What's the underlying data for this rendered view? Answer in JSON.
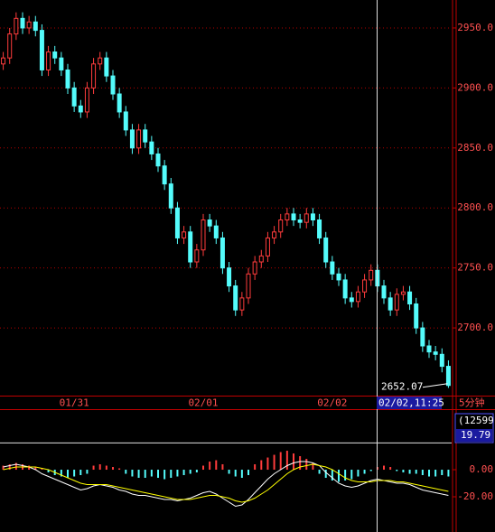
{
  "chart_data": [
    {
      "type": "candlestick",
      "categories": [
        null,
        null,
        null,
        null,
        null,
        null,
        null,
        null,
        null,
        null,
        null,
        "01/31",
        null,
        null,
        null,
        null,
        null,
        null,
        null,
        null,
        null,
        null,
        null,
        null,
        null,
        null,
        null,
        null,
        null,
        null,
        null,
        "02/01",
        null,
        null,
        null,
        null,
        null,
        null,
        null,
        null,
        null,
        null,
        null,
        null,
        null,
        null,
        null,
        null,
        null,
        null,
        null,
        "02/02",
        null,
        null,
        null,
        null,
        null,
        null,
        null,
        null,
        null,
        null,
        null,
        null,
        null,
        null,
        null,
        null,
        null,
        null
      ],
      "open": [
        2920,
        2925,
        2945,
        2958,
        2950,
        2955,
        2948,
        2915,
        2930,
        2925,
        2915,
        2900,
        2885,
        2880,
        2900,
        2920,
        2925,
        2910,
        2895,
        2880,
        2865,
        2850,
        2865,
        2855,
        2845,
        2835,
        2820,
        2800,
        2775,
        2780,
        2755,
        2765,
        2790,
        2785,
        2775,
        2750,
        2735,
        2715,
        2725,
        2745,
        2755,
        2760,
        2775,
        2780,
        2790,
        2795,
        2790,
        2788,
        2795,
        2790,
        2775,
        2755,
        2745,
        2740,
        2725,
        2722,
        2730,
        2740,
        2748,
        2735,
        2725,
        2715,
        2728,
        2730,
        2720,
        2700,
        2685,
        2680,
        2678,
        2668
      ],
      "high": [
        2930,
        2950,
        2963,
        2963,
        2960,
        2960,
        2953,
        2935,
        2935,
        2930,
        2920,
        2905,
        2890,
        2905,
        2925,
        2930,
        2930,
        2915,
        2900,
        2885,
        2870,
        2870,
        2870,
        2860,
        2850,
        2840,
        2825,
        2805,
        2785,
        2785,
        2770,
        2795,
        2795,
        2790,
        2780,
        2755,
        2740,
        2730,
        2750,
        2760,
        2765,
        2780,
        2785,
        2795,
        2800,
        2800,
        2795,
        2800,
        2800,
        2795,
        2780,
        2760,
        2750,
        2745,
        2730,
        2735,
        2745,
        2753,
        2753,
        2740,
        2730,
        2733,
        2735,
        2735,
        2725,
        2705,
        2690,
        2685,
        2683,
        2673
      ],
      "low": [
        2915,
        2920,
        2940,
        2945,
        2945,
        2943,
        2910,
        2910,
        2920,
        2910,
        2895,
        2880,
        2875,
        2875,
        2895,
        2915,
        2905,
        2890,
        2875,
        2860,
        2845,
        2845,
        2850,
        2840,
        2830,
        2815,
        2795,
        2770,
        2770,
        2750,
        2750,
        2760,
        2780,
        2770,
        2745,
        2730,
        2710,
        2710,
        2720,
        2740,
        2750,
        2755,
        2770,
        2775,
        2785,
        2785,
        2783,
        2783,
        2785,
        2770,
        2750,
        2740,
        2735,
        2720,
        2717,
        2717,
        2725,
        2735,
        2730,
        2720,
        2710,
        2710,
        2723,
        2715,
        2695,
        2680,
        2675,
        2673,
        2663,
        2650
      ],
      "close": [
        2925,
        2945,
        2958,
        2950,
        2955,
        2948,
        2915,
        2930,
        2925,
        2915,
        2900,
        2885,
        2880,
        2900,
        2920,
        2925,
        2910,
        2895,
        2880,
        2865,
        2850,
        2865,
        2855,
        2845,
        2835,
        2820,
        2800,
        2775,
        2780,
        2755,
        2765,
        2790,
        2785,
        2775,
        2750,
        2735,
        2715,
        2725,
        2745,
        2755,
        2760,
        2775,
        2780,
        2790,
        2795,
        2790,
        2788,
        2795,
        2790,
        2775,
        2755,
        2745,
        2740,
        2725,
        2722,
        2730,
        2740,
        2748,
        2735,
        2725,
        2715,
        2728,
        2730,
        2720,
        2700,
        2685,
        2680,
        2678,
        2668,
        2652.07
      ],
      "up_color": "#ff3c3c",
      "down_color": "#54fcfc",
      "ylim": [
        2643.6,
        2973.3
      ],
      "yticks": [
        {
          "value": 2700,
          "label": "2700.0"
        },
        {
          "value": 2750,
          "label": "2750.0"
        },
        {
          "value": 2800,
          "label": "2800.0"
        },
        {
          "value": 2850,
          "label": "2850.0"
        },
        {
          "value": 2900,
          "label": "2900.0"
        },
        {
          "value": 2950,
          "label": "2950.0"
        }
      ],
      "grid": true,
      "period": "5分钟",
      "crosshair_label": "02/02,11:25"
    },
    {
      "type": "macd",
      "histogram": [
        3,
        4,
        5,
        4,
        3,
        2,
        1,
        -2,
        -4,
        -5,
        -6,
        -5,
        -4,
        -3,
        3,
        4,
        3,
        2,
        1,
        -3,
        -5,
        -6,
        -6,
        -5,
        -6,
        -7,
        -6,
        -5,
        -4,
        -3,
        -2,
        3,
        6,
        7,
        4,
        -3,
        -5,
        -6,
        -4,
        4,
        7,
        9,
        11,
        13,
        14,
        12,
        10,
        8,
        5,
        -3,
        -6,
        -8,
        -9,
        -8,
        -7,
        -5,
        -3,
        -1,
        2,
        3,
        2,
        -1,
        -2,
        -3,
        -3,
        -4,
        -5,
        -5,
        -4,
        -5
      ],
      "dif": [
        2,
        3,
        4,
        3,
        2,
        0,
        -3,
        -5,
        -7,
        -9,
        -11,
        -13,
        -15,
        -14,
        -12,
        -11,
        -12,
        -13,
        -15,
        -16,
        -18,
        -19,
        -19,
        -20,
        -21,
        -22,
        -22,
        -23,
        -22,
        -21,
        -19,
        -17,
        -16,
        -18,
        -21,
        -24,
        -27,
        -26,
        -22,
        -17,
        -12,
        -7,
        -3,
        0,
        3,
        5,
        6,
        6,
        5,
        3,
        -2,
        -6,
        -10,
        -12,
        -13,
        -12,
        -10,
        -8,
        -7,
        -8,
        -9,
        -10,
        -10,
        -11,
        -13,
        -15,
        -16,
        -17,
        -18,
        -19
      ],
      "dea": [
        0,
        1,
        2,
        2,
        2,
        2,
        1,
        0,
        -2,
        -4,
        -6,
        -8,
        -10,
        -11,
        -11,
        -11,
        -11,
        -12,
        -13,
        -14,
        -15,
        -16,
        -17,
        -18,
        -19,
        -20,
        -21,
        -22,
        -22,
        -22,
        -21,
        -20,
        -19,
        -19,
        -20,
        -21,
        -23,
        -24,
        -23,
        -21,
        -18,
        -15,
        -11,
        -7,
        -3,
        0,
        2,
        3,
        4,
        3,
        2,
        0,
        -3,
        -6,
        -8,
        -9,
        -9,
        -9,
        -8,
        -8,
        -8,
        -9,
        -9,
        -10,
        -11,
        -12,
        -13,
        -14,
        -15,
        -16
      ],
      "up_color": "#ff3c3c",
      "down_color": "#54fcfc",
      "dif_color": "#ffffff",
      "dea_color": "#ffff00",
      "ylim": [
        -46,
        44.7
      ],
      "yticks": [
        {
          "value": -20,
          "label": "-20.00"
        },
        {
          "value": 0,
          "label": "0.00"
        }
      ],
      "cursor_label": "(12599)",
      "cursor_value": 19.79
    }
  ]
}
